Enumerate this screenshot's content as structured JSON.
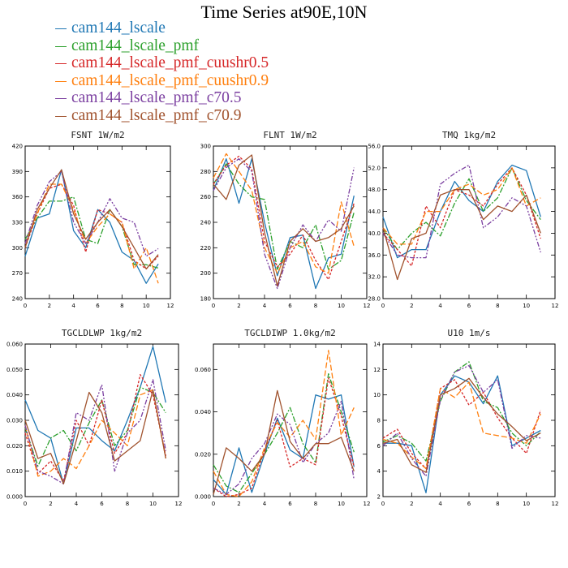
{
  "title": "Time Series at90E,10N",
  "legend": [
    {
      "name": "cam144_lscale",
      "color": "#1f77b4"
    },
    {
      "name": "cam144_lscale_pmf",
      "color": "#2ca02c"
    },
    {
      "name": "cam144_lscale_pmf_cuushr0.5",
      "color": "#d62728"
    },
    {
      "name": "cam144_lscale_pmf_cuushr0.9",
      "color": "#ff7f0e"
    },
    {
      "name": "cam144_lscale_pmf_c70.5",
      "color": "#7b3fa0"
    },
    {
      "name": "cam144_lscale_pmf_c70.9",
      "color": "#a0522d"
    }
  ],
  "chart_data": [
    {
      "type": "line",
      "title": "FSNT 1W/m2",
      "x": [
        0,
        1,
        2,
        3,
        4,
        5,
        6,
        7,
        8,
        9,
        10,
        11
      ],
      "xlim": [
        0,
        12
      ],
      "ylim": [
        240,
        420
      ],
      "xticks": [
        0,
        2,
        4,
        6,
        8,
        10,
        12
      ],
      "yticks": [
        240,
        270,
        300,
        330,
        360,
        390,
        420
      ],
      "ytick_labels": [
        "240",
        "270",
        "300",
        "330",
        "360",
        "390",
        "420"
      ],
      "series": [
        {
          "name": "cam144_lscale",
          "values": [
            290,
            335,
            340,
            392,
            320,
            300,
            345,
            330,
            295,
            285,
            258,
            281
          ]
        },
        {
          "name": "cam144_lscale_pmf",
          "values": [
            310,
            335,
            355,
            355,
            360,
            310,
            305,
            345,
            325,
            280,
            280,
            276
          ]
        },
        {
          "name": "cam144_lscale_pmf_cuushr0.5",
          "values": [
            300,
            340,
            370,
            375,
            350,
            295,
            345,
            340,
            330,
            285,
            275,
            290
          ]
        },
        {
          "name": "cam144_lscale_pmf_cuushr0.9",
          "values": [
            305,
            340,
            375,
            375,
            345,
            305,
            325,
            340,
            330,
            275,
            300,
            258
          ]
        },
        {
          "name": "cam144_lscale_pmf_c70.5",
          "values": [
            305,
            350,
            378,
            390,
            330,
            305,
            330,
            358,
            335,
            330,
            290,
            299
          ]
        },
        {
          "name": "cam144_lscale_pmf_c70.9",
          "values": [
            300,
            345,
            370,
            392,
            340,
            310,
            330,
            345,
            325,
            300,
            275,
            292
          ]
        }
      ]
    },
    {
      "type": "line",
      "title": "FLNT 1W/m2",
      "x": [
        0,
        1,
        2,
        3,
        4,
        5,
        6,
        7,
        8,
        9,
        10,
        11
      ],
      "xlim": [
        0,
        12
      ],
      "ylim": [
        180,
        300
      ],
      "xticks": [
        0,
        2,
        4,
        6,
        8,
        10,
        12
      ],
      "yticks": [
        180,
        200,
        220,
        240,
        260,
        280,
        300
      ],
      "ytick_labels": [
        "180",
        "200",
        "220",
        "240",
        "260",
        "280",
        "300"
      ],
      "series": [
        {
          "name": "cam144_lscale",
          "values": [
            265,
            290,
            255,
            290,
            240,
            198,
            228,
            230,
            188,
            212,
            215,
            261
          ]
        },
        {
          "name": "cam144_lscale_pmf",
          "values": [
            270,
            286,
            270,
            260,
            258,
            203,
            225,
            220,
            238,
            203,
            210,
            248
          ]
        },
        {
          "name": "cam144_lscale_pmf_cuushr0.5",
          "values": [
            270,
            285,
            292,
            282,
            225,
            205,
            215,
            230,
            210,
            195,
            225,
            255
          ]
        },
        {
          "name": "cam144_lscale_pmf_cuushr0.9",
          "values": [
            275,
            294,
            280,
            265,
            220,
            200,
            220,
            225,
            205,
            200,
            256,
            221
          ]
        },
        {
          "name": "cam144_lscale_pmf_c70.5",
          "values": [
            265,
            283,
            290,
            280,
            215,
            188,
            220,
            238,
            225,
            242,
            233,
            283
          ]
        },
        {
          "name": "cam144_lscale_pmf_c70.9",
          "values": [
            270,
            258,
            285,
            293,
            232,
            190,
            225,
            235,
            225,
            228,
            235,
            253
          ]
        }
      ]
    },
    {
      "type": "line",
      "title": "TMQ 1kg/m2",
      "x": [
        0,
        1,
        2,
        3,
        4,
        5,
        6,
        7,
        8,
        9,
        10,
        11
      ],
      "xlim": [
        0,
        12
      ],
      "ylim": [
        28,
        56
      ],
      "xticks": [
        0,
        2,
        4,
        6,
        8,
        10,
        12
      ],
      "yticks": [
        28,
        32,
        36,
        40,
        44,
        48,
        52,
        56
      ],
      "ytick_labels": [
        "28.0",
        "32.0",
        "36.0",
        "40.0",
        "44.0",
        "48.0",
        "52.0",
        "56.0"
      ],
      "series": [
        {
          "name": "cam144_lscale",
          "values": [
            43,
            35.5,
            37,
            37,
            44,
            49.5,
            46,
            44,
            49.5,
            52.5,
            51.5,
            43
          ]
        },
        {
          "name": "cam144_lscale_pmf",
          "values": [
            41,
            37,
            40,
            42,
            39.5,
            45.5,
            50,
            44,
            46.5,
            52,
            46,
            42.5
          ]
        },
        {
          "name": "cam144_lscale_pmf_cuushr0.5",
          "values": [
            40,
            37,
            34,
            45,
            41,
            48,
            47,
            45,
            49,
            52,
            47,
            39
          ]
        },
        {
          "name": "cam144_lscale_pmf_cuushr0.9",
          "values": [
            41,
            38,
            38,
            44,
            44,
            48,
            49,
            47,
            48,
            52,
            45,
            46.5
          ]
        },
        {
          "name": "cam144_lscale_pmf_c70.5",
          "values": [
            40,
            36,
            35.5,
            35.5,
            49,
            51,
            52.5,
            41,
            43,
            46.5,
            45,
            36.5
          ]
        },
        {
          "name": "cam144_lscale_pmf_c70.9",
          "values": [
            41,
            31.5,
            39,
            40,
            47,
            48,
            48,
            42.5,
            45,
            44,
            47,
            40
          ]
        }
      ]
    },
    {
      "type": "line",
      "title": "TGCLDLWP 1kg/m2",
      "x": [
        0,
        1,
        2,
        3,
        4,
        5,
        6,
        7,
        8,
        9,
        10,
        11
      ],
      "xlim": [
        0,
        12
      ],
      "ylim": [
        0,
        0.06
      ],
      "xticks": [
        0,
        2,
        4,
        6,
        8,
        10,
        12
      ],
      "yticks": [
        0,
        0.01,
        0.02,
        0.03,
        0.04,
        0.05,
        0.06
      ],
      "ytick_labels": [
        "0.000",
        "0.010",
        "0.020",
        "0.030",
        "0.040",
        "0.050",
        "0.060"
      ],
      "series": [
        {
          "name": "cam144_lscale",
          "values": [
            0.038,
            0.026,
            0.023,
            0.005,
            0.027,
            0.027,
            0.022,
            0.018,
            0.03,
            0.043,
            0.059,
            0.037
          ]
        },
        {
          "name": "cam144_lscale_pmf",
          "values": [
            0.027,
            0.012,
            0.023,
            0.026,
            0.018,
            0.029,
            0.038,
            0.02,
            0.026,
            0.043,
            0.041,
            0.033
          ]
        },
        {
          "name": "cam144_lscale_pmf_cuushr0.5",
          "values": [
            0.025,
            0.009,
            0.014,
            0.006,
            0.03,
            0.02,
            0.038,
            0.017,
            0.025,
            0.048,
            0.04,
            0.016
          ]
        },
        {
          "name": "cam144_lscale_pmf_cuushr0.9",
          "values": [
            0.028,
            0.008,
            0.01,
            0.015,
            0.011,
            0.02,
            0.03,
            0.025,
            0.02,
            0.04,
            0.042,
            0.015
          ]
        },
        {
          "name": "cam144_lscale_pmf_c70.5",
          "values": [
            0.028,
            0.01,
            0.008,
            0.005,
            0.033,
            0.03,
            0.044,
            0.01,
            0.025,
            0.03,
            0.046,
            0.018
          ]
        },
        {
          "name": "cam144_lscale_pmf_c70.9",
          "values": [
            0.03,
            0.015,
            0.017,
            0.005,
            0.022,
            0.041,
            0.033,
            0.014,
            0.018,
            0.022,
            0.042,
            0.015
          ]
        }
      ]
    },
    {
      "type": "line",
      "title": "TGCLDIWP 1.0kg/m2",
      "x": [
        0,
        1,
        2,
        3,
        4,
        5,
        6,
        7,
        8,
        9,
        10,
        11
      ],
      "xlim": [
        0,
        12
      ],
      "ylim": [
        0,
        0.072
      ],
      "xticks": [
        0,
        2,
        4,
        6,
        8,
        10,
        12
      ],
      "yticks": [
        0,
        0.02,
        0.04,
        0.06
      ],
      "ytick_labels": [
        "0.000",
        "0.020",
        "0.040",
        "0.060"
      ],
      "series": [
        {
          "name": "cam144_lscale",
          "values": [
            0.008,
            0.001,
            0.023,
            0.002,
            0.02,
            0.037,
            0.022,
            0.018,
            0.048,
            0.046,
            0.048,
            0.014
          ]
        },
        {
          "name": "cam144_lscale_pmf",
          "values": [
            0.015,
            0.005,
            0.002,
            0.011,
            0.02,
            0.03,
            0.042,
            0.025,
            0.016,
            0.058,
            0.04,
            0.021
          ]
        },
        {
          "name": "cam144_lscale_pmf_cuushr0.5",
          "values": [
            0.004,
            0,
            0.001,
            0.004,
            0.022,
            0.036,
            0.014,
            0.018,
            0.015,
            0.056,
            0.038,
            0.014
          ]
        },
        {
          "name": "cam144_lscale_pmf_cuushr0.9",
          "values": [
            0.012,
            0.001,
            0,
            0.007,
            0.023,
            0.035,
            0.028,
            0.036,
            0.027,
            0.069,
            0.029,
            0.042
          ]
        },
        {
          "name": "cam144_lscale_pmf_c70.5",
          "values": [
            0.004,
            0.001,
            0.006,
            0.018,
            0.025,
            0.039,
            0.034,
            0.016,
            0.025,
            0.03,
            0.045,
            0.008
          ]
        },
        {
          "name": "cam144_lscale_pmf_c70.9",
          "values": [
            0.001,
            0.023,
            0.018,
            0.012,
            0.02,
            0.05,
            0.026,
            0.018,
            0.025,
            0.025,
            0.028,
            0.012
          ]
        }
      ]
    },
    {
      "type": "line",
      "title": "U10 1m/s",
      "x": [
        0,
        1,
        2,
        3,
        4,
        5,
        6,
        7,
        8,
        9,
        10,
        11
      ],
      "xlim": [
        0,
        12
      ],
      "ylim": [
        2,
        14
      ],
      "xticks": [
        0,
        2,
        4,
        6,
        8,
        10,
        12
      ],
      "yticks": [
        2,
        4,
        6,
        8,
        10,
        12,
        14
      ],
      "ytick_labels": [
        "2",
        "4",
        "6",
        "8",
        "10",
        "12",
        "14"
      ],
      "series": [
        {
          "name": "cam144_lscale",
          "values": [
            6.2,
            6.2,
            6,
            2.3,
            10,
            11.5,
            11,
            9.3,
            11.5,
            6,
            6.6,
            7.2
          ]
        },
        {
          "name": "cam144_lscale_pmf",
          "values": [
            6.3,
            6.8,
            6.2,
            4.8,
            9.5,
            11.8,
            12.6,
            9.5,
            9,
            7,
            6,
            7.1
          ]
        },
        {
          "name": "cam144_lscale_pmf_cuushr0.5",
          "values": [
            6.6,
            7.3,
            5.4,
            4.2,
            10.5,
            11.2,
            9.2,
            10.2,
            8.2,
            6.6,
            5.4,
            8.8
          ]
        },
        {
          "name": "cam144_lscale_pmf_cuushr0.9",
          "values": [
            6.5,
            6.2,
            5.1,
            4.2,
            10.5,
            9.8,
            11,
            7,
            6.8,
            6.6,
            6.2,
            8.5
          ]
        },
        {
          "name": "cam144_lscale_pmf_c70.5",
          "values": [
            6,
            7,
            5,
            3.6,
            9.6,
            11.8,
            12.3,
            10.2,
            11.2,
            5.8,
            6.8,
            6.6
          ]
        },
        {
          "name": "cam144_lscale_pmf_c70.9",
          "values": [
            6.2,
            6.5,
            4.5,
            3.9,
            10,
            10.5,
            11.3,
            9.8,
            8.5,
            7.5,
            6.4,
            7
          ]
        }
      ]
    }
  ]
}
